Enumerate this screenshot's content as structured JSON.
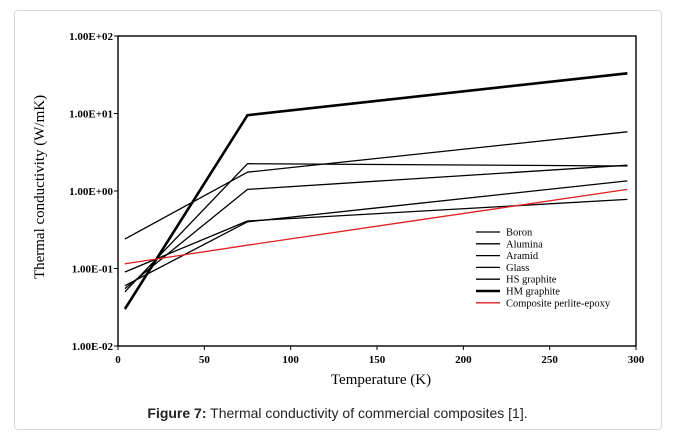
{
  "caption": {
    "label": "Figure 7:",
    "text": "Thermal conductivity of commercial composites [1]."
  },
  "chart_data": {
    "type": "line",
    "xlabel": "Temperature (K)",
    "ylabel": "Thermal conductivity (W/mK)",
    "x_ticks": [
      "0",
      "50",
      "100",
      "150",
      "200",
      "250",
      "300"
    ],
    "y_ticks": [
      "1.00E-02",
      "1.00E-01",
      "1.00E+00",
      "1.00E+01",
      "1.00E+02"
    ],
    "xlim": [
      0,
      300
    ],
    "ylim": [
      0.01,
      100
    ],
    "yscale": "log",
    "grid": false,
    "legend_position": "bottom-right",
    "series": [
      {
        "name": "Boron",
        "x": [
          4,
          75,
          295
        ],
        "y": [
          0.24,
          1.75,
          5.8
        ],
        "color": "#000000",
        "width": 1.3
      },
      {
        "name": "Alumina",
        "x": [
          4,
          75,
          295
        ],
        "y": [
          0.055,
          1.05,
          2.15
        ],
        "color": "#000000",
        "width": 1.3
      },
      {
        "name": "Aramid",
        "x": [
          4,
          75,
          295
        ],
        "y": [
          0.06,
          0.4,
          1.35
        ],
        "color": "#000000",
        "width": 1.3
      },
      {
        "name": "Glass",
        "x": [
          4,
          75,
          295
        ],
        "y": [
          0.09,
          0.41,
          0.78
        ],
        "color": "#000000",
        "width": 1.3
      },
      {
        "name": "HS graphite",
        "x": [
          4,
          75,
          295
        ],
        "y": [
          0.05,
          2.25,
          2.1
        ],
        "color": "#000000",
        "width": 1.3
      },
      {
        "name": "HM graphite",
        "x": [
          4,
          75,
          295
        ],
        "y": [
          0.03,
          9.5,
          33
        ],
        "color": "#000000",
        "width": 2.6
      },
      {
        "name": "Composite perlite-epoxy",
        "x": [
          4,
          75,
          295
        ],
        "y": [
          0.115,
          0.2,
          1.05
        ],
        "color": "#e02020",
        "width": 1.3
      }
    ]
  }
}
